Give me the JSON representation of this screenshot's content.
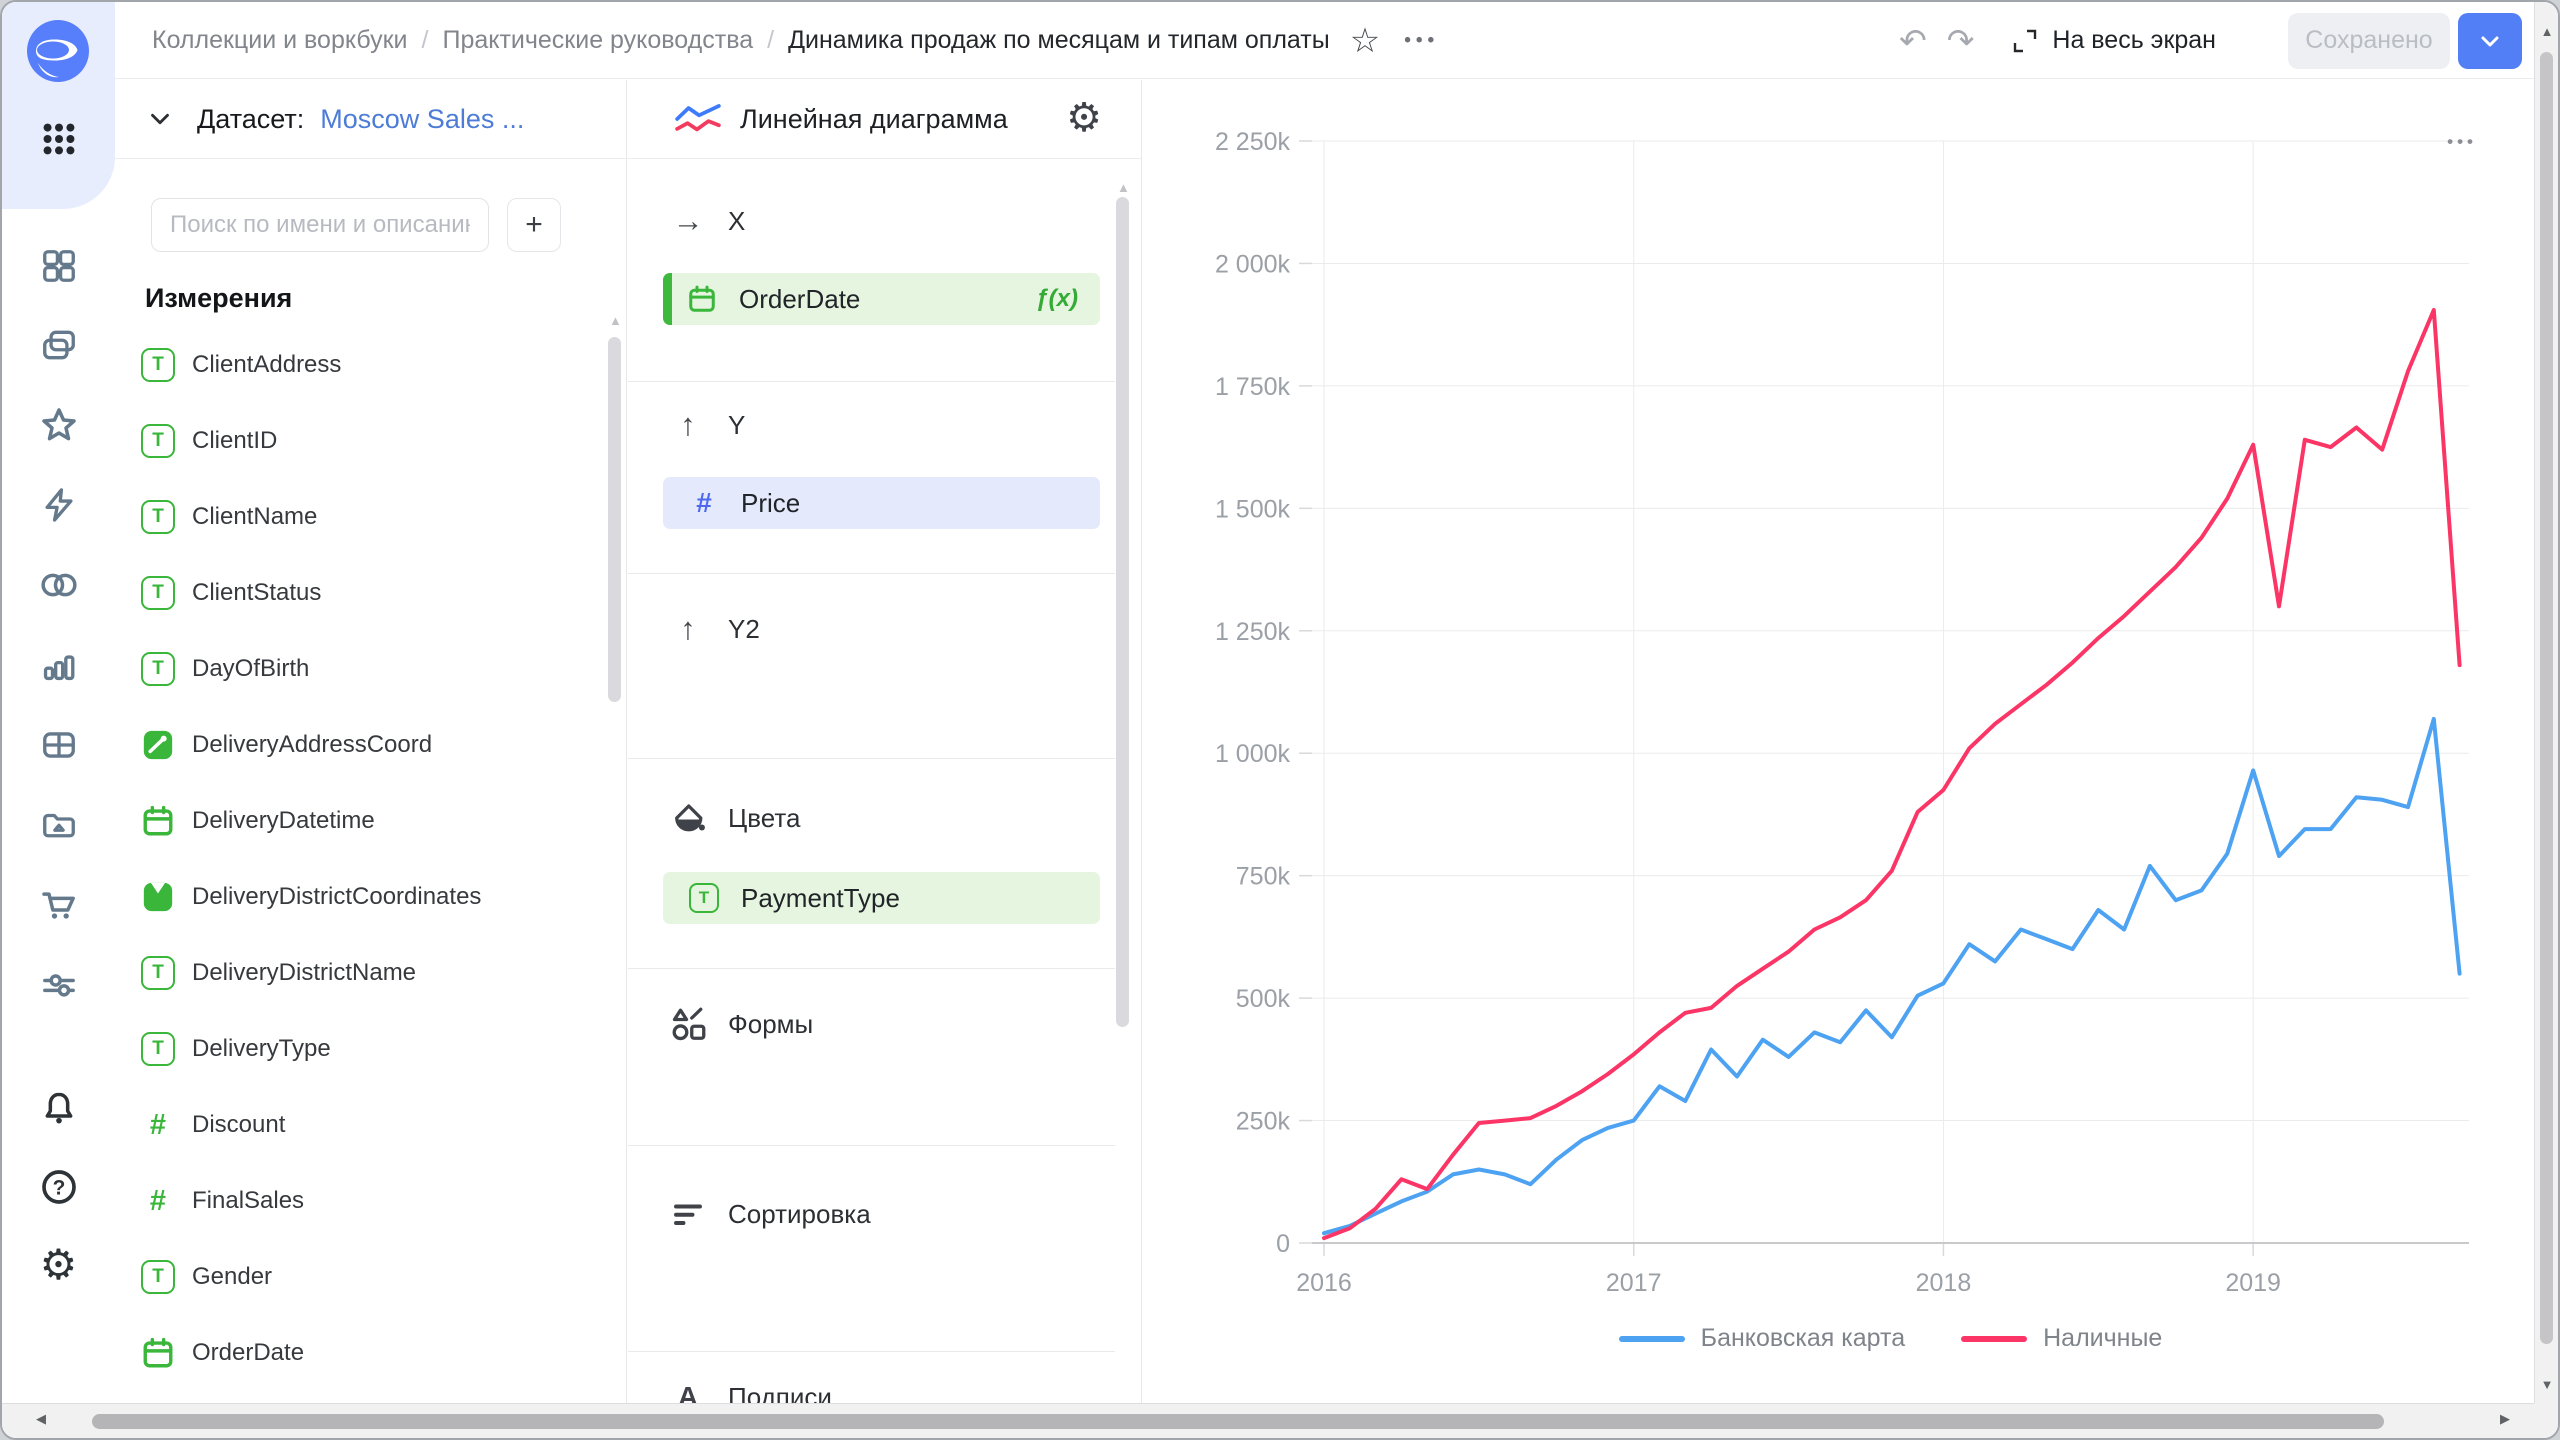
{
  "topbar": {
    "breadcrumbs": [
      "Коллекции и воркбуки",
      "Практические руководства",
      "Динамика продаж по месяцам и типам оплаты"
    ],
    "separator": "/",
    "fullscreen_label": "На весь экран",
    "saved_label": "Сохранено"
  },
  "icons": {
    "undo": "↶",
    "redo": "↷",
    "favorite": "☆",
    "more": "•••",
    "chart_menu": "•••",
    "gear": "⚙",
    "scroll_up": "▲",
    "scroll_down": "▼",
    "scroll_left": "◀",
    "scroll_right": "▶"
  },
  "dataset_panel": {
    "header_label": "Датасет:",
    "dataset_name": "Moscow Sales ...",
    "search_placeholder": "Поиск по имени и описанию",
    "add_button": "+",
    "dimensions_title": "Измерения",
    "fields": [
      {
        "name": "ClientAddress",
        "type": "text"
      },
      {
        "name": "ClientID",
        "type": "text"
      },
      {
        "name": "ClientName",
        "type": "text"
      },
      {
        "name": "ClientStatus",
        "type": "text"
      },
      {
        "name": "DayOfBirth",
        "type": "text"
      },
      {
        "name": "DeliveryAddressCoord",
        "type": "geopoint"
      },
      {
        "name": "DeliveryDatetime",
        "type": "date"
      },
      {
        "name": "DeliveryDistrictCoordinates",
        "type": "geopolygon"
      },
      {
        "name": "DeliveryDistrictName",
        "type": "text"
      },
      {
        "name": "DeliveryType",
        "type": "text"
      },
      {
        "name": "Discount",
        "type": "number"
      },
      {
        "name": "FinalSales",
        "type": "number"
      },
      {
        "name": "Gender",
        "type": "text"
      },
      {
        "name": "OrderDate",
        "type": "date"
      }
    ]
  },
  "config_panel": {
    "chart_type_label": "Линейная диаграмма",
    "sections": {
      "x": {
        "label": "X"
      },
      "y": {
        "label": "Y"
      },
      "y2": {
        "label": "Y2"
      },
      "colors": {
        "label": "Цвета"
      },
      "shapes": {
        "label": "Формы"
      },
      "sorting": {
        "label": "Сортировка"
      },
      "labels": {
        "label": "Подписи"
      }
    },
    "x_field": {
      "name": "OrderDate",
      "type": "date",
      "formula_badge": "ƒ(x)"
    },
    "y_field": {
      "name": "Price",
      "type": "number"
    },
    "color_field": {
      "name": "PaymentType",
      "type": "text"
    }
  },
  "colors": {
    "accent_blue": "#527ef6",
    "link_blue": "#4d7cd6",
    "field_green": "#3ab63a",
    "pill_green_bg": "#e6f5e0",
    "pill_blue_bg": "#e4e9fc",
    "series_blue": "#4da2f2",
    "series_red": "#fb3566"
  },
  "chart_data": {
    "type": "line",
    "x_unit": "month",
    "x_start": "2016-01",
    "x_end": "2019-09",
    "x_tick_labels": [
      "2016",
      "2017",
      "2018",
      "2019"
    ],
    "y_tick_values": [
      0,
      250,
      500,
      750,
      1000,
      1250,
      1500,
      1750,
      2000,
      2250
    ],
    "y_tick_labels": [
      "0",
      "250k",
      "500k",
      "750k",
      "1 000k",
      "1 250k",
      "1 500k",
      "1 750k",
      "2 000k",
      "2 250k"
    ],
    "ylim": [
      0,
      2250
    ],
    "values_unit": "thousands (k)",
    "grid": true,
    "legend_position": "bottom",
    "series": [
      {
        "name": "Банковская карта",
        "color": "#4da2f2",
        "values": [
          20,
          35,
          60,
          85,
          105,
          140,
          150,
          140,
          120,
          170,
          210,
          235,
          250,
          320,
          290,
          395,
          340,
          415,
          380,
          430,
          410,
          475,
          420,
          505,
          530,
          610,
          575,
          640,
          620,
          600,
          680,
          640,
          770,
          700,
          720,
          795,
          965,
          790,
          845,
          845,
          910,
          905,
          890,
          1070,
          550
        ]
      },
      {
        "name": "Наличные",
        "color": "#fb3566",
        "values": [
          10,
          30,
          70,
          130,
          110,
          180,
          245,
          250,
          255,
          280,
          310,
          345,
          385,
          430,
          470,
          480,
          525,
          560,
          595,
          640,
          665,
          700,
          760,
          880,
          925,
          1010,
          1060,
          1100,
          1140,
          1185,
          1235,
          1280,
          1330,
          1380,
          1440,
          1520,
          1630,
          1300,
          1640,
          1625,
          1665,
          1620,
          1780,
          1905,
          1180
        ]
      }
    ]
  }
}
